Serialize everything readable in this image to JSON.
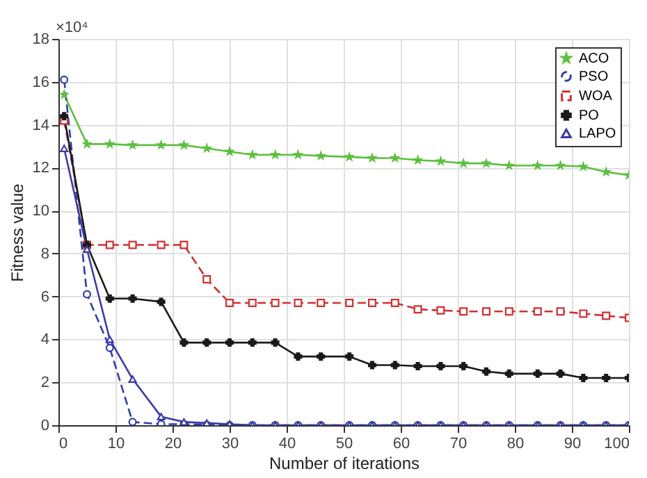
{
  "chart_data": {
    "type": "line",
    "xlabel": "Number of iterations",
    "ylabel": "Fitness value",
    "annotations": [
      "×10⁴"
    ],
    "x": [
      1,
      5,
      9,
      13,
      18,
      22,
      26,
      30,
      34,
      38,
      42,
      46,
      51,
      55,
      59,
      63,
      67,
      71,
      75,
      79,
      84,
      88,
      92,
      96,
      100
    ],
    "series": [
      {
        "name": "ACO",
        "color": "#5cbf3f",
        "marker": "star",
        "line_style": "solid",
        "values": [
          15.4,
          13.1,
          13.1,
          13.05,
          13.05,
          13.05,
          12.9,
          12.75,
          12.6,
          12.6,
          12.6,
          12.55,
          12.5,
          12.45,
          12.45,
          12.35,
          12.3,
          12.2,
          12.2,
          12.1,
          12.1,
          12.1,
          12.05,
          11.8,
          11.65
        ]
      },
      {
        "name": "PSO",
        "color": "#2e3ea8",
        "marker": "circle",
        "line_style": "dashed",
        "values": [
          16.1,
          6.1,
          3.6,
          0.15,
          0.05,
          0.05,
          0.02,
          0,
          0,
          0,
          0,
          0,
          0,
          0,
          0,
          0,
          0,
          0,
          0,
          0,
          0,
          0,
          0,
          0,
          0
        ]
      },
      {
        "name": "WOA",
        "color": "#d03030",
        "marker": "square",
        "line_style": "dashed",
        "values": [
          14.2,
          8.4,
          8.4,
          8.4,
          8.4,
          8.4,
          6.8,
          5.7,
          5.7,
          5.7,
          5.7,
          5.7,
          5.7,
          5.7,
          5.7,
          5.4,
          5.35,
          5.3,
          5.3,
          5.3,
          5.3,
          5.3,
          5.2,
          5.1,
          5.0
        ]
      },
      {
        "name": "PO",
        "color": "#1a1a1a",
        "marker": "cross",
        "line_style": "solid",
        "values": [
          14.4,
          8.4,
          5.9,
          5.9,
          5.75,
          3.85,
          3.85,
          3.85,
          3.85,
          3.85,
          3.2,
          3.2,
          3.2,
          2.8,
          2.8,
          2.75,
          2.75,
          2.75,
          2.5,
          2.4,
          2.4,
          2.4,
          2.2,
          2.2,
          2.2
        ]
      },
      {
        "name": "LAPO",
        "color": "#3a3aa8",
        "marker": "triangle",
        "line_style": "solid",
        "values": [
          12.9,
          8.2,
          4.0,
          2.15,
          0.4,
          0.15,
          0.1,
          0.05,
          0,
          0,
          0,
          0,
          0,
          0,
          0,
          0,
          0,
          0,
          0,
          0,
          0,
          0,
          0,
          0,
          0
        ]
      }
    ],
    "xlim": [
      0,
      100
    ],
    "xticks": [
      0,
      10,
      20,
      30,
      40,
      50,
      60,
      70,
      80,
      90,
      100
    ],
    "ylim": [
      0,
      18
    ],
    "yticks": [
      0,
      2,
      4,
      6,
      8,
      10,
      12,
      14,
      16,
      18
    ],
    "grid": true,
    "legend": "top right"
  }
}
